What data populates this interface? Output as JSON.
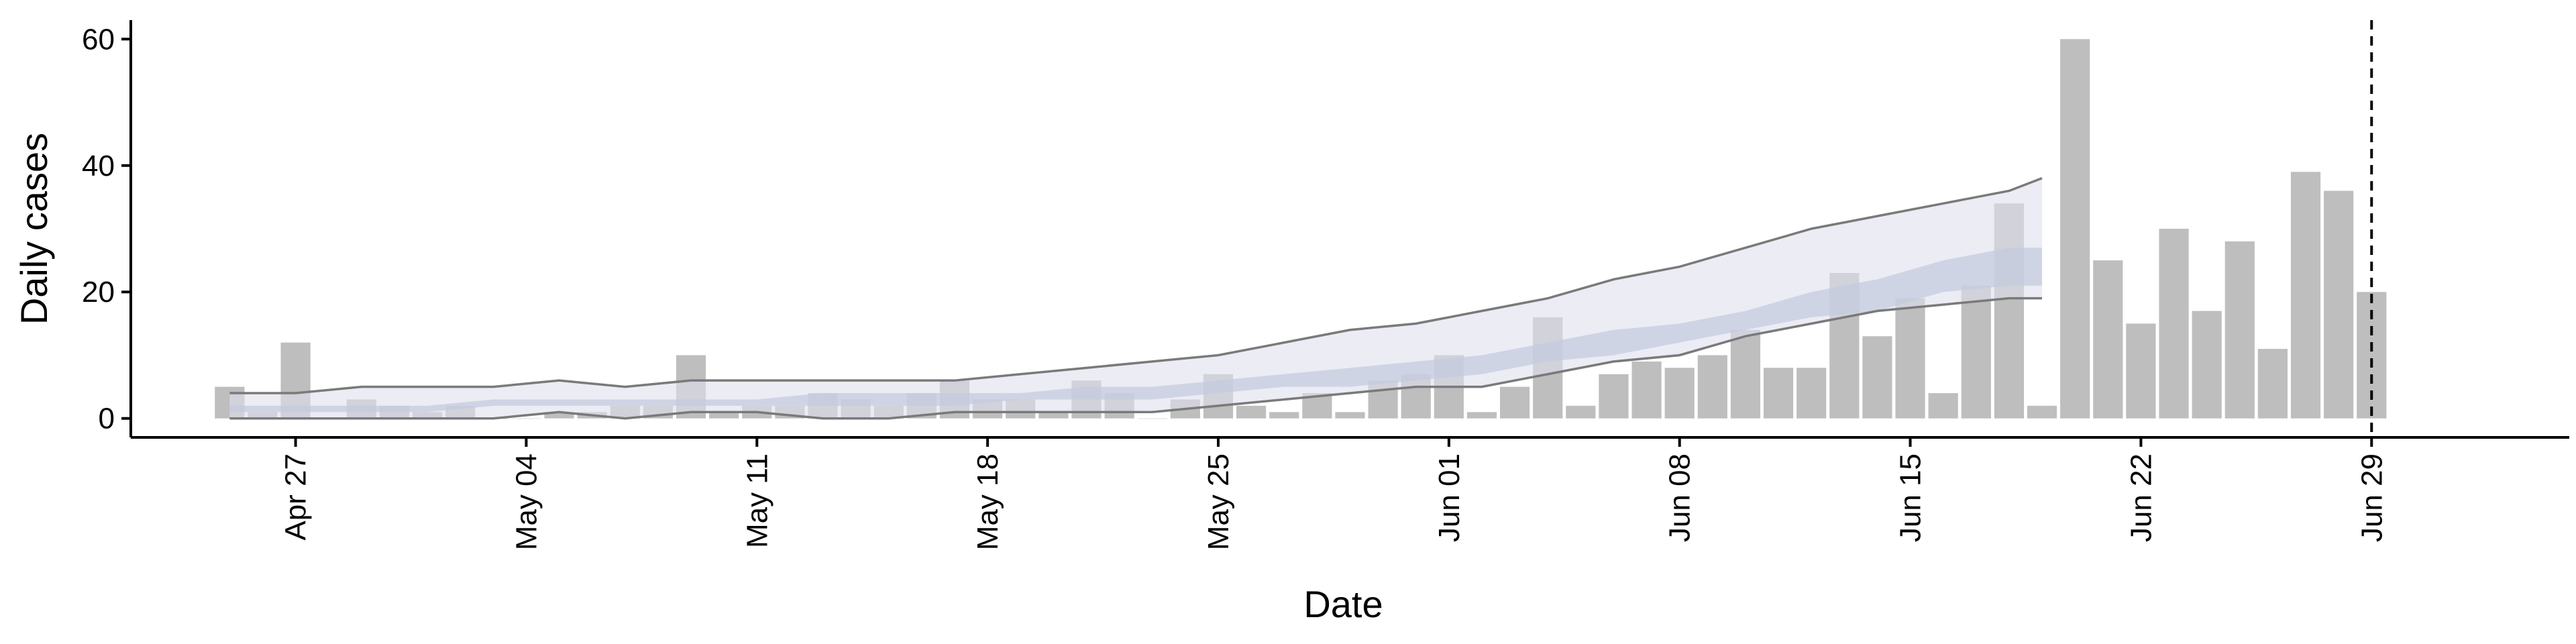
{
  "chart_data": {
    "type": "bar",
    "xlabel": "Date",
    "ylabel": "Daily cases",
    "ylim": [
      -3,
      63
    ],
    "y_ticks": [
      0,
      20,
      40,
      60
    ],
    "x_ticks": [
      "2020-04-27",
      "2020-05-04",
      "2020-05-11",
      "2020-05-18",
      "2020-05-25",
      "2020-06-01",
      "2020-06-08",
      "2020-06-15",
      "2020-06-22",
      "2020-06-29"
    ],
    "x_tick_labels": [
      "Apr 27",
      "May 04",
      "May 11",
      "May 18",
      "May 25",
      "Jun 01",
      "Jun 08",
      "Jun 15",
      "Jun 22",
      "Jun 29"
    ],
    "xlim": [
      "2020-04-22",
      "2020-07-05"
    ],
    "grid": false,
    "reference_line": {
      "date": "2020-06-29",
      "style": "dashed"
    },
    "colors": {
      "bars": "#bebebe",
      "band_outer": "#dde0ec",
      "band_inner": "#c3cade",
      "band_lines": "#7a7a7a",
      "reference_line": "#000000"
    },
    "series": [
      {
        "kind": "bars",
        "dates": [
          "2020-04-25",
          "2020-04-26",
          "2020-04-27",
          "2020-04-28",
          "2020-04-29",
          "2020-04-30",
          "2020-05-01",
          "2020-05-02",
          "2020-05-03",
          "2020-05-04",
          "2020-05-05",
          "2020-05-06",
          "2020-05-07",
          "2020-05-08",
          "2020-05-09",
          "2020-05-10",
          "2020-05-11",
          "2020-05-12",
          "2020-05-13",
          "2020-05-14",
          "2020-05-15",
          "2020-05-16",
          "2020-05-17",
          "2020-05-18",
          "2020-05-19",
          "2020-05-20",
          "2020-05-21",
          "2020-05-22",
          "2020-05-23",
          "2020-05-24",
          "2020-05-25",
          "2020-05-26",
          "2020-05-27",
          "2020-05-28",
          "2020-05-29",
          "2020-05-30",
          "2020-05-31",
          "2020-06-01",
          "2020-06-02",
          "2020-06-03",
          "2020-06-04",
          "2020-06-05",
          "2020-06-06",
          "2020-06-07",
          "2020-06-08",
          "2020-06-09",
          "2020-06-10",
          "2020-06-11",
          "2020-06-12",
          "2020-06-13",
          "2020-06-14",
          "2020-06-15",
          "2020-06-16",
          "2020-06-17",
          "2020-06-18",
          "2020-06-19",
          "2020-06-20",
          "2020-06-21",
          "2020-06-22",
          "2020-06-23",
          "2020-06-24",
          "2020-06-25",
          "2020-06-26",
          "2020-06-27",
          "2020-06-28",
          "2020-06-29"
        ],
        "values": [
          5,
          1,
          12,
          0,
          3,
          2,
          1,
          2,
          0,
          0,
          1,
          1,
          2,
          2,
          10,
          1,
          2,
          2,
          4,
          3,
          2,
          4,
          6,
          3,
          3,
          1,
          6,
          4,
          0,
          3,
          7,
          2,
          1,
          4,
          1,
          6,
          7,
          10,
          1,
          5,
          16,
          2,
          7,
          9,
          8,
          10,
          14,
          8,
          8,
          23,
          13,
          19,
          4,
          21,
          34,
          2,
          60,
          25,
          15,
          30,
          17,
          28,
          11,
          39,
          36,
          20
        ]
      },
      {
        "kind": "band_outer",
        "dates": [
          "2020-04-25",
          "2020-04-27",
          "2020-04-29",
          "2020-05-01",
          "2020-05-03",
          "2020-05-05",
          "2020-05-07",
          "2020-05-09",
          "2020-05-11",
          "2020-05-13",
          "2020-05-15",
          "2020-05-17",
          "2020-05-19",
          "2020-05-21",
          "2020-05-23",
          "2020-05-25",
          "2020-05-27",
          "2020-05-29",
          "2020-05-31",
          "2020-06-02",
          "2020-06-04",
          "2020-06-06",
          "2020-06-08",
          "2020-06-10",
          "2020-06-12",
          "2020-06-14",
          "2020-06-16",
          "2020-06-18",
          "2020-06-19"
        ],
        "upper": [
          4,
          4,
          5,
          5,
          5,
          6,
          5,
          6,
          6,
          6,
          6,
          6,
          7,
          8,
          9,
          10,
          12,
          14,
          15,
          17,
          19,
          22,
          24,
          27,
          30,
          32,
          34,
          36,
          38
        ],
        "lower": [
          0,
          0,
          0,
          0,
          0,
          1,
          0,
          1,
          1,
          0,
          0,
          1,
          1,
          1,
          1,
          2,
          3,
          4,
          5,
          5,
          7,
          9,
          10,
          13,
          15,
          17,
          18,
          19,
          19
        ]
      },
      {
        "kind": "band_inner",
        "dates": [
          "2020-04-25",
          "2020-04-27",
          "2020-04-29",
          "2020-05-01",
          "2020-05-03",
          "2020-05-05",
          "2020-05-07",
          "2020-05-09",
          "2020-05-11",
          "2020-05-13",
          "2020-05-15",
          "2020-05-17",
          "2020-05-19",
          "2020-05-21",
          "2020-05-23",
          "2020-05-25",
          "2020-05-27",
          "2020-05-29",
          "2020-05-31",
          "2020-06-02",
          "2020-06-04",
          "2020-06-06",
          "2020-06-08",
          "2020-06-10",
          "2020-06-12",
          "2020-06-14",
          "2020-06-16",
          "2020-06-18",
          "2020-06-19"
        ],
        "upper": [
          2,
          2,
          2,
          2,
          3,
          3,
          3,
          3,
          3,
          4,
          4,
          4,
          4,
          5,
          5,
          6,
          7,
          8,
          9,
          10,
          12,
          14,
          15,
          17,
          20,
          22,
          25,
          27,
          27
        ],
        "lower": [
          1,
          1,
          1,
          1,
          2,
          2,
          2,
          2,
          2,
          2,
          2,
          2,
          3,
          3,
          3,
          4,
          5,
          5,
          6,
          7,
          9,
          10,
          12,
          14,
          16,
          17,
          20,
          21,
          21
        ]
      }
    ]
  }
}
